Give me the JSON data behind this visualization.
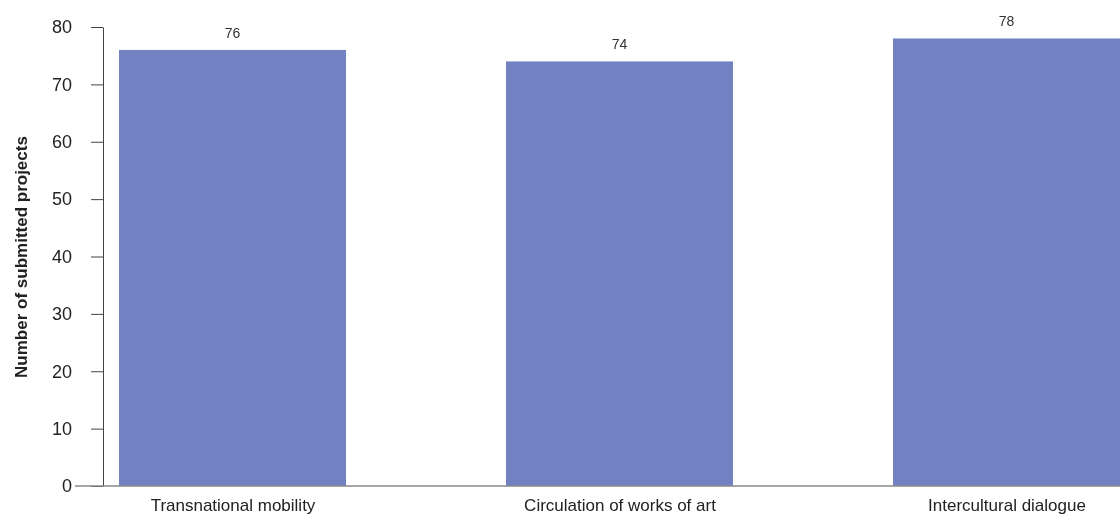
{
  "chart_data": {
    "type": "bar",
    "ylabel": "Number of submitted projects",
    "categories": [
      "Transnational mobility",
      "Circulation of works of art",
      "Intercultural dialogue"
    ],
    "values": [
      76,
      74,
      78
    ],
    "color": "#7181c1",
    "ylim": [
      0,
      80
    ],
    "yticks": [
      0,
      10,
      20,
      30,
      40,
      50,
      60,
      70,
      80
    ],
    "data_labels": true
  }
}
